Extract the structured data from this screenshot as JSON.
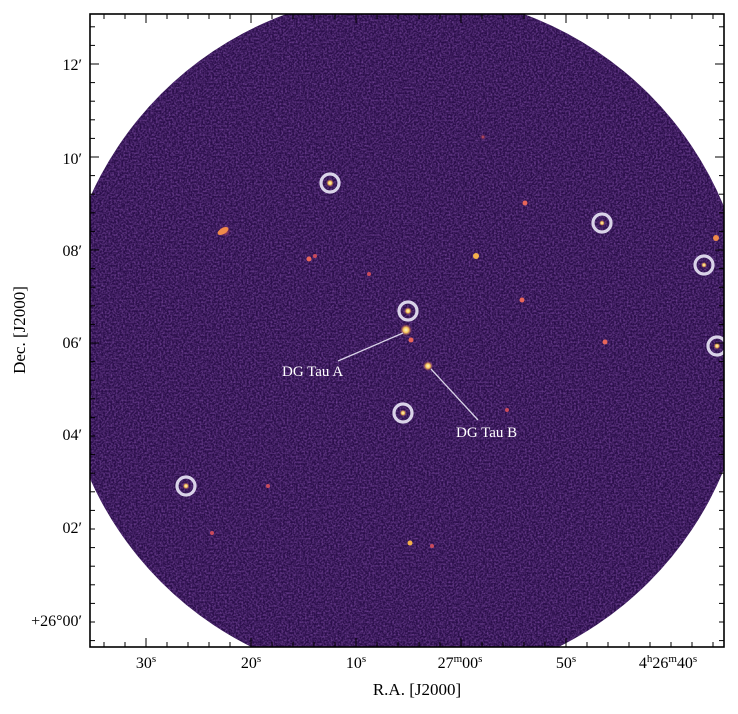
{
  "figure": {
    "xlabel": "R.A. [J2000]",
    "ylabel": "Dec. [J2000]",
    "colormap": "inferno-like dark purple",
    "background_color": "#2a0e4a",
    "frame_color": "#000000",
    "circle_color": "#d9d3e8",
    "x_ticks": [
      {
        "label_main": "30",
        "label_sup": "s"
      },
      {
        "label_main": "20",
        "label_sup": "s"
      },
      {
        "label_main": "10",
        "label_sup": "s"
      },
      {
        "label_main": "27",
        "label_sup": "m",
        "label_main2": "00",
        "label_sup2": "s"
      },
      {
        "label_main": "50",
        "label_sup": "s"
      },
      {
        "label_main": "4",
        "label_sup": "h",
        "label_main2": "26",
        "label_sup2": "m",
        "label_main3": "40",
        "label_sup3": "s"
      }
    ],
    "y_ticks": [
      {
        "label": "12′"
      },
      {
        "label": "10′"
      },
      {
        "label": "08′"
      },
      {
        "label": "06′"
      },
      {
        "label": "04′"
      },
      {
        "label": "02′"
      },
      {
        "label": "+26°00′"
      }
    ],
    "annotations": [
      {
        "label": "DG Tau A"
      },
      {
        "label": "DG Tau B"
      }
    ]
  }
}
